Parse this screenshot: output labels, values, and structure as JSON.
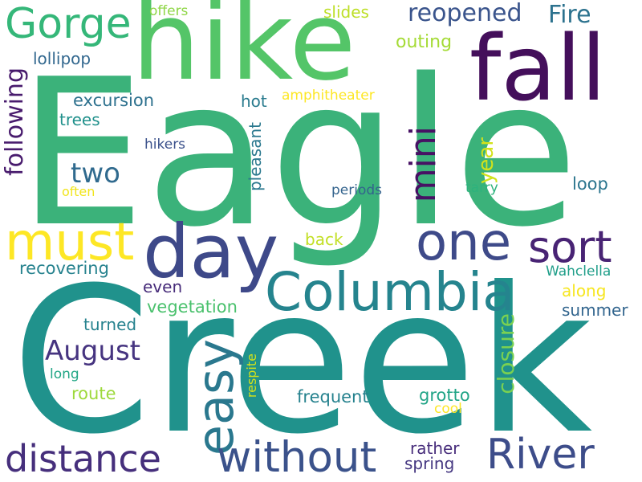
{
  "words": [
    {
      "text": "Eagle",
      "color": "#3bb27a"
    },
    {
      "text": "Creek",
      "color": "#20928c"
    },
    {
      "text": "hike",
      "color": "#54c568"
    },
    {
      "text": "fall",
      "color": "#440f5b"
    },
    {
      "text": "Gorge",
      "color": "#35b779"
    },
    {
      "text": "day",
      "color": "#3e4989"
    },
    {
      "text": "Columbia",
      "color": "#25848e"
    },
    {
      "text": "one",
      "color": "#3e4a89"
    },
    {
      "text": "sort",
      "color": "#482374"
    },
    {
      "text": "must",
      "color": "#fde725"
    },
    {
      "text": "easy",
      "color": "#2a788e"
    },
    {
      "text": "without",
      "color": "#3b528b"
    },
    {
      "text": "distance",
      "color": "#462f7c"
    },
    {
      "text": "River",
      "color": "#3d4d8a"
    },
    {
      "text": "August",
      "color": "#463480"
    },
    {
      "text": "Fire",
      "color": "#2c728e"
    },
    {
      "text": "reopened",
      "color": "#3a548c"
    },
    {
      "text": "mini",
      "color": "#471164"
    },
    {
      "text": "two",
      "color": "#306a8e"
    },
    {
      "text": "following",
      "color": "#481b6d"
    },
    {
      "text": "year",
      "color": "#d2e21b"
    },
    {
      "text": "closure",
      "color": "#7ad151"
    },
    {
      "text": "slides",
      "color": "#bddf26"
    },
    {
      "text": "outing",
      "color": "#a5db36"
    },
    {
      "text": "offers",
      "color": "#8ed645"
    },
    {
      "text": "lollipop",
      "color": "#31678e"
    },
    {
      "text": "excursion",
      "color": "#2d718e"
    },
    {
      "text": "hot",
      "color": "#2a7b8e"
    },
    {
      "text": "amphitheater",
      "color": "#fde725"
    },
    {
      "text": "trees",
      "color": "#21918c"
    },
    {
      "text": "hikers",
      "color": "#3b518b"
    },
    {
      "text": "pleasant",
      "color": "#2a788e"
    },
    {
      "text": "often",
      "color": "#f1e51d"
    },
    {
      "text": "periods",
      "color": "#33638d"
    },
    {
      "text": "tarry",
      "color": "#2db27d"
    },
    {
      "text": "loop",
      "color": "#2b758e"
    },
    {
      "text": "back",
      "color": "#c2df23"
    },
    {
      "text": "recovering",
      "color": "#26828e"
    },
    {
      "text": "Wahclella",
      "color": "#1f9e89"
    },
    {
      "text": "even",
      "color": "#472c7a"
    },
    {
      "text": "along",
      "color": "#f6e620"
    },
    {
      "text": "vegetation",
      "color": "#4ac16d"
    },
    {
      "text": "summer",
      "color": "#32658e"
    },
    {
      "text": "turned",
      "color": "#26828e"
    },
    {
      "text": "long",
      "color": "#21a685"
    },
    {
      "text": "route",
      "color": "#9dd93b"
    },
    {
      "text": "respite",
      "color": "#d2e21b"
    },
    {
      "text": "frequent",
      "color": "#26828e"
    },
    {
      "text": "grotto",
      "color": "#20a486"
    },
    {
      "text": "cool",
      "color": "#fde725"
    },
    {
      "text": "rather",
      "color": "#472d7b"
    },
    {
      "text": "spring",
      "color": "#453781"
    }
  ]
}
